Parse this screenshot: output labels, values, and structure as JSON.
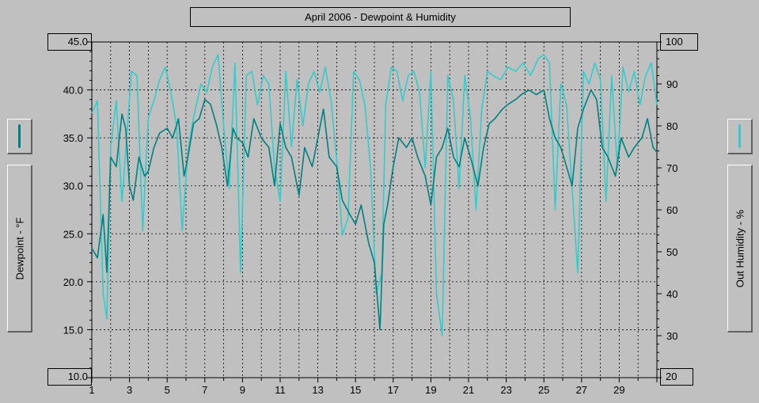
{
  "chart_data": {
    "type": "line",
    "title": "April 2006 - Dewpoint & Humidity",
    "xlabel": "",
    "x_ticks": [
      "1",
      "3",
      "5",
      "7",
      "9",
      "11",
      "13",
      "15",
      "17",
      "19",
      "21",
      "23",
      "25",
      "27",
      "29"
    ],
    "xlim": [
      1,
      31
    ],
    "y_left": {
      "label": "Dewpoint - °F",
      "lim": [
        10.0,
        45.0
      ],
      "ticks": [
        "45.0",
        "40.0",
        "35.0",
        "30.0",
        "25.0",
        "20.0",
        "15.0",
        "10.0"
      ]
    },
    "y_right": {
      "label": "Out Humidity - %",
      "lim": [
        20,
        100
      ],
      "ticks": [
        "100",
        "90",
        "80",
        "70",
        "60",
        "50",
        "40",
        "30",
        "20"
      ]
    },
    "grid": true,
    "series": [
      {
        "axis": "left",
        "color": "#008080",
        "x": [
          1.0,
          1.3,
          1.6,
          1.8,
          2.0,
          2.3,
          2.6,
          2.8,
          3.0,
          3.2,
          3.5,
          3.8,
          4.0,
          4.3,
          4.6,
          5.0,
          5.3,
          5.6,
          5.9,
          6.1,
          6.4,
          6.7,
          7.0,
          7.3,
          7.6,
          7.9,
          8.2,
          8.5,
          8.7,
          9.0,
          9.3,
          9.6,
          10.0,
          10.4,
          10.7,
          11.0,
          11.3,
          11.6,
          12.0,
          12.3,
          12.7,
          13.0,
          13.3,
          13.6,
          14.0,
          14.3,
          14.7,
          15.0,
          15.3,
          15.7,
          16.0,
          16.3,
          16.5,
          16.7,
          17.0,
          17.3,
          17.7,
          18.0,
          18.3,
          18.7,
          19.0,
          19.3,
          19.6,
          19.9,
          20.2,
          20.5,
          20.8,
          21.1,
          21.5,
          21.8,
          22.1,
          22.4,
          22.8,
          23.1,
          23.5,
          23.8,
          24.2,
          24.6,
          25.0,
          25.3,
          25.6,
          25.9,
          26.2,
          26.5,
          26.8,
          27.1,
          27.5,
          27.8,
          28.1,
          28.4,
          28.8,
          29.1,
          29.5,
          29.8,
          30.2,
          30.5,
          30.8,
          31.0
        ],
        "values": [
          23.5,
          22.5,
          27.0,
          21.0,
          33.0,
          32.0,
          37.5,
          36.0,
          30.0,
          28.5,
          33.0,
          31.0,
          31.5,
          34.0,
          35.5,
          36.0,
          35.0,
          37.0,
          31.0,
          33.0,
          36.5,
          37.0,
          39.0,
          38.5,
          36.5,
          34.0,
          30.0,
          36.0,
          35.0,
          34.5,
          33.0,
          37.0,
          35.0,
          34.0,
          30.0,
          36.5,
          34.0,
          33.0,
          29.0,
          34.0,
          32.0,
          35.0,
          38.0,
          33.0,
          32.0,
          28.5,
          27.0,
          26.0,
          28.0,
          24.0,
          22.0,
          15.0,
          26.0,
          28.0,
          32.0,
          35.0,
          34.0,
          35.0,
          33.0,
          31.0,
          28.0,
          33.0,
          34.0,
          36.0,
          33.0,
          32.0,
          35.0,
          33.0,
          30.0,
          34.0,
          36.5,
          37.0,
          38.0,
          38.5,
          39.0,
          39.5,
          40.0,
          39.5,
          40.0,
          37.0,
          35.0,
          34.0,
          32.0,
          30.0,
          36.0,
          38.0,
          40.0,
          39.0,
          34.0,
          33.0,
          31.0,
          35.0,
          33.0,
          34.0,
          35.0,
          37.0,
          34.0,
          33.5
        ]
      },
      {
        "axis": "right",
        "color": "#33cccc",
        "x": [
          1.0,
          1.3,
          1.6,
          1.8,
          2.0,
          2.3,
          2.6,
          2.9,
          3.1,
          3.4,
          3.7,
          4.0,
          4.3,
          4.6,
          4.9,
          5.2,
          5.5,
          5.8,
          6.1,
          6.4,
          6.8,
          7.1,
          7.4,
          7.7,
          8.0,
          8.3,
          8.6,
          8.9,
          9.2,
          9.5,
          9.8,
          10.1,
          10.4,
          10.7,
          11.0,
          11.3,
          11.6,
          11.9,
          12.2,
          12.5,
          12.8,
          13.1,
          13.4,
          13.7,
          14.0,
          14.3,
          14.6,
          14.9,
          15.2,
          15.5,
          15.8,
          16.1,
          16.4,
          16.6,
          16.9,
          17.2,
          17.5,
          17.8,
          18.1,
          18.4,
          18.7,
          19.0,
          19.3,
          19.6,
          19.9,
          20.2,
          20.5,
          20.8,
          21.1,
          21.4,
          21.7,
          22.0,
          22.3,
          22.7,
          23.1,
          23.5,
          23.9,
          24.3,
          24.7,
          25.0,
          25.3,
          25.6,
          25.9,
          26.2,
          26.5,
          26.8,
          27.1,
          27.4,
          27.7,
          28.0,
          28.3,
          28.6,
          28.9,
          29.2,
          29.5,
          29.8,
          30.1,
          30.4,
          30.7,
          31.0
        ],
        "values": [
          83,
          86,
          40,
          34,
          75,
          86,
          62,
          80,
          93,
          92,
          55,
          82,
          86,
          91,
          94,
          88,
          80,
          55,
          74,
          82,
          90,
          88,
          94,
          97,
          80,
          65,
          95,
          45,
          92,
          93,
          85,
          92,
          90,
          70,
          62,
          93,
          75,
          91,
          80,
          90,
          93,
          88,
          94,
          86,
          72,
          54,
          58,
          93,
          91,
          85,
          70,
          40,
          45,
          85,
          94,
          93,
          86,
          92,
          93,
          88,
          70,
          93,
          40,
          30,
          92,
          86,
          65,
          92,
          82,
          60,
          84,
          93,
          92,
          91,
          94,
          93,
          95,
          92,
          96,
          97,
          95,
          60,
          90,
          85,
          65,
          45,
          93,
          90,
          95,
          91,
          62,
          92,
          70,
          94,
          88,
          93,
          85,
          92,
          95,
          85
        ]
      }
    ]
  },
  "legend": {
    "left_color": "#008080",
    "right_color": "#33cccc"
  }
}
